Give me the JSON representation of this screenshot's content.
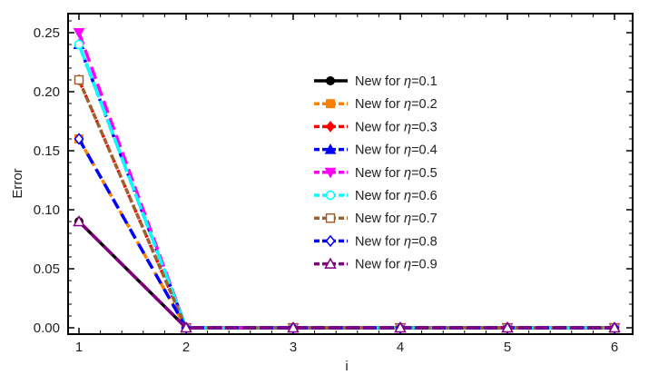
{
  "chart_data": {
    "type": "line",
    "xlabel": "i",
    "ylabel": "Error",
    "xlim": [
      1,
      6
    ],
    "ylim": [
      0,
      0.25
    ],
    "x": [
      1,
      2,
      3,
      4,
      5,
      6
    ],
    "xticks": [
      "1",
      "2",
      "3",
      "4",
      "5",
      "6"
    ],
    "yticks": [
      "0.00",
      "0.05",
      "0.10",
      "0.15",
      "0.20",
      "0.25"
    ],
    "legend_position": "center-right",
    "series": [
      {
        "name": "New for η=0.1",
        "prefix": "New for ",
        "sym": "η",
        "eq": "=0.1",
        "color": "#000000",
        "marker": "filled-circle",
        "dash": "",
        "values": [
          0.09,
          0,
          0,
          0,
          0,
          0
        ]
      },
      {
        "name": "New for η=0.2",
        "prefix": "New for ",
        "sym": "η",
        "eq": "=0.2",
        "color": "#ff8000",
        "marker": "filled-square",
        "dash": "8 5",
        "values": [
          0.16,
          0,
          0,
          0,
          0,
          0
        ]
      },
      {
        "name": "New for η=0.3",
        "prefix": "New for ",
        "sym": "η",
        "eq": "=0.3",
        "color": "#ff0000",
        "marker": "filled-diamond",
        "dash": "3 3",
        "values": [
          0.21,
          0,
          0,
          0,
          0,
          0
        ]
      },
      {
        "name": "New for η=0.4",
        "prefix": "New for ",
        "sym": "η",
        "eq": "=0.4",
        "color": "#0000ff",
        "marker": "filled-triangle-up",
        "dash": "5 3",
        "values": [
          0.24,
          0,
          0,
          0,
          0,
          0
        ]
      },
      {
        "name": "New for η=0.5",
        "prefix": "New for ",
        "sym": "η",
        "eq": "=0.5",
        "color": "#ff00ff",
        "marker": "filled-triangle-down",
        "dash": "14 6",
        "values": [
          0.25,
          0,
          0,
          0,
          0,
          0
        ]
      },
      {
        "name": "New for η=0.6",
        "prefix": "New for ",
        "sym": "η",
        "eq": "=0.6",
        "color": "#00ffff",
        "marker": "open-circle",
        "dash": "18 4",
        "values": [
          0.24,
          0,
          0,
          0,
          0,
          0
        ]
      },
      {
        "name": "New for η=0.7",
        "prefix": "New for ",
        "sym": "η",
        "eq": "=0.7",
        "color": "#a0602e",
        "marker": "open-square",
        "dash": "7 3",
        "values": [
          0.21,
          0,
          0,
          0,
          0,
          0
        ]
      },
      {
        "name": "New for η=0.8",
        "prefix": "New for ",
        "sym": "η",
        "eq": "=0.8",
        "color": "#0000ff",
        "marker": "open-diamond",
        "dash": "12 7",
        "values": [
          0.16,
          0,
          0,
          0,
          0,
          0
        ]
      },
      {
        "name": "New for η=0.9",
        "prefix": "New for ",
        "sym": "η",
        "eq": "=0.9",
        "color": "#800080",
        "marker": "open-triangle-up",
        "dash": "14 5",
        "values": [
          0.09,
          0,
          0,
          0,
          0,
          0
        ]
      }
    ]
  }
}
